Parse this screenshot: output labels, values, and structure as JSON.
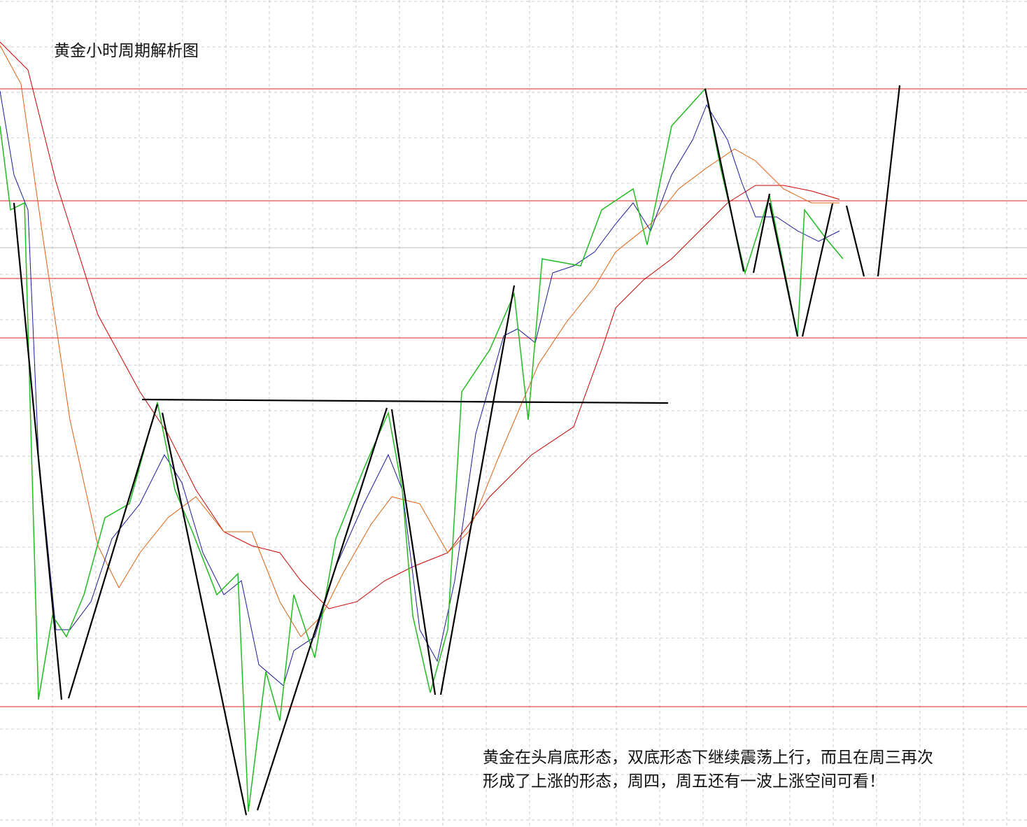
{
  "header": {
    "title": "黄金小时周期解析图"
  },
  "annotation": {
    "lines": [
      "黄金在头肩底形态，双底形态下继续震荡上行，而且在周三再次",
      "形成了上涨的形态，周四，周五还有一波上涨空间可看！"
    ]
  }
}
